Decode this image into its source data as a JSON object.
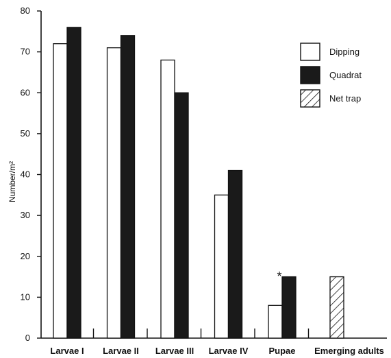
{
  "chart_data": {
    "type": "bar",
    "ylabel": "Number/m²",
    "xlabel": "",
    "ylim": [
      0,
      80
    ],
    "yticks": [
      0,
      10,
      20,
      30,
      40,
      50,
      60,
      70,
      80
    ],
    "categories": [
      "Larvae I",
      "Larvae II",
      "Larvae III",
      "Larvae IV",
      "Pupae",
      "Emerging adults"
    ],
    "series": [
      {
        "name": "Dipping",
        "pattern": "open",
        "values": [
          72,
          71,
          68,
          35,
          8,
          null
        ]
      },
      {
        "name": "Quadrat",
        "pattern": "solid",
        "values": [
          76,
          74,
          60,
          41,
          15,
          null
        ]
      },
      {
        "name": "Net trap",
        "pattern": "hatched",
        "values": [
          null,
          null,
          null,
          null,
          null,
          15
        ]
      }
    ],
    "annotations": [
      {
        "text": "*",
        "category": "Pupae"
      }
    ],
    "legend_position": "top-right",
    "grid": false,
    "colors": {
      "open": "#ffffff",
      "solid": "#1a1a1a",
      "outline": "#111111"
    }
  }
}
